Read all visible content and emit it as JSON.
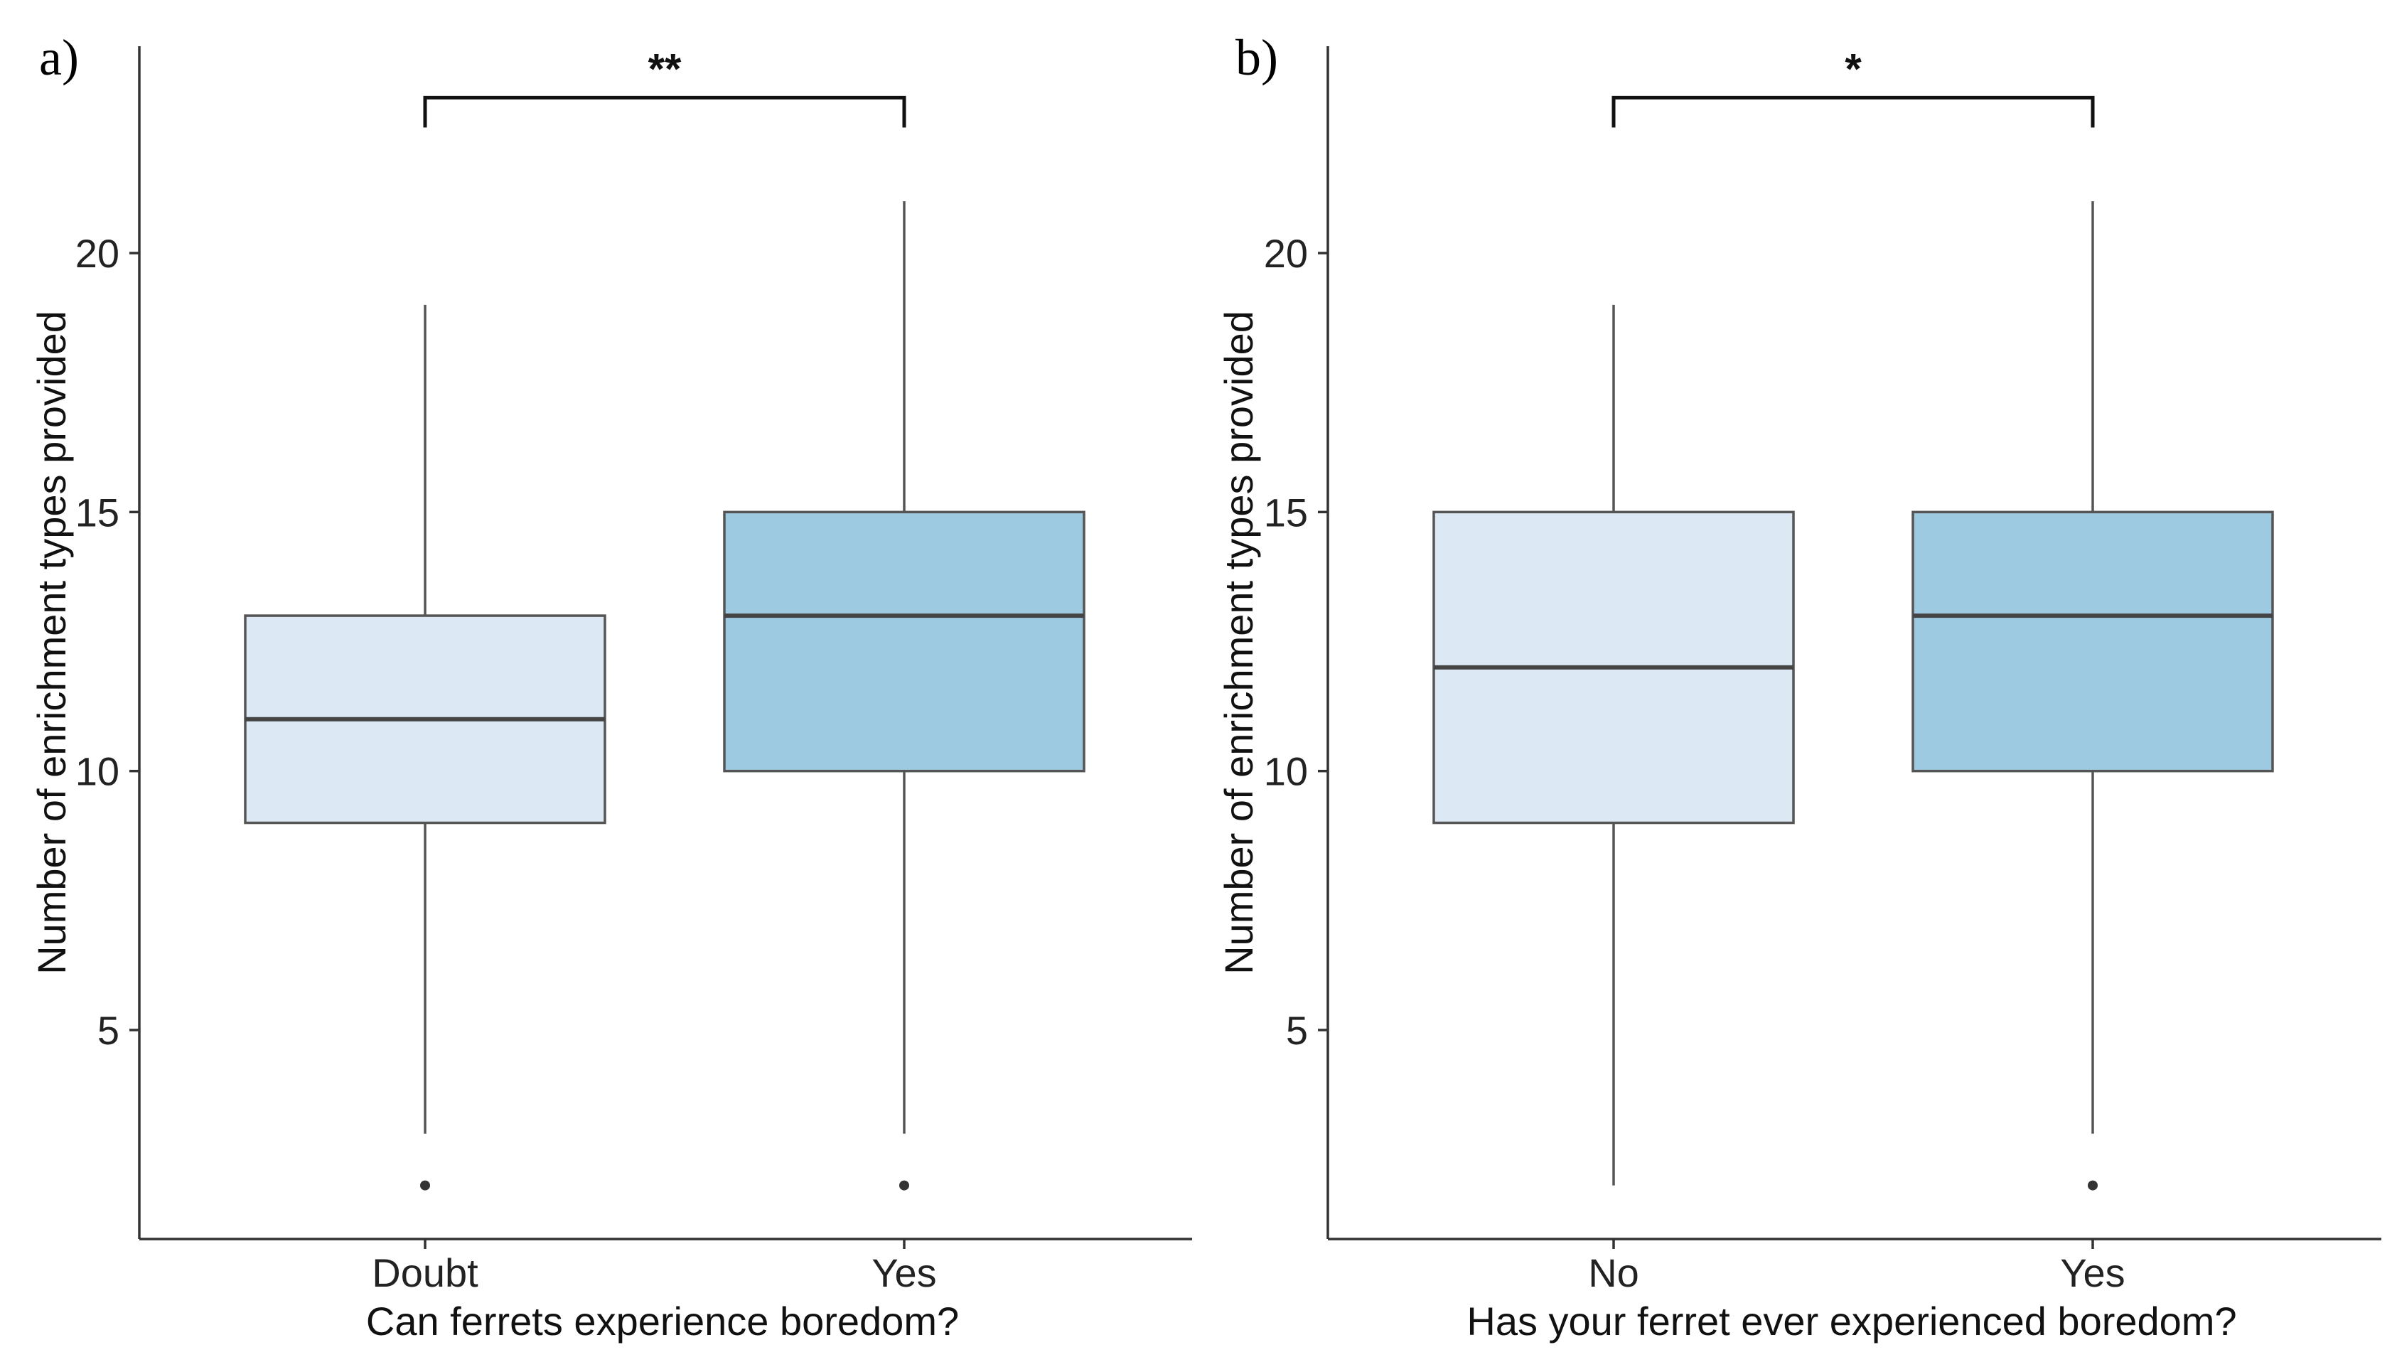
{
  "chart_data": [
    {
      "type": "box",
      "panel_label": "a)",
      "xlabel": "Can ferrets experience boredom?",
      "ylabel": "Number of enrichment types provided",
      "categories": [
        "Doubt",
        "Yes"
      ],
      "y_ticks": [
        5,
        10,
        15,
        20
      ],
      "y_tick_labels": [
        "5",
        "10",
        "15",
        "20"
      ],
      "ylim": [
        1,
        24
      ],
      "grid": false,
      "boxes": [
        {
          "category": "Doubt",
          "whisker_low": 3,
          "q1": 9,
          "median": 11,
          "q3": 13,
          "whisker_high": 19,
          "outliers": [
            2
          ],
          "color": "#dde8f5"
        },
        {
          "category": "Yes",
          "whisker_low": 3,
          "q1": 10,
          "median": 13,
          "q3": 15,
          "whisker_high": 21,
          "outliers": [
            2
          ],
          "color": "#9dcae1"
        }
      ],
      "significance": {
        "label": "**",
        "between": [
          "Doubt",
          "Yes"
        ],
        "y": 23
      }
    },
    {
      "type": "box",
      "panel_label": "b)",
      "xlabel": "Has your ferret ever experienced boredom?",
      "ylabel": "Number of enrichment types provided",
      "categories": [
        "No",
        "Yes"
      ],
      "y_ticks": [
        5,
        10,
        15,
        20
      ],
      "y_tick_labels": [
        "5",
        "10",
        "15",
        "20"
      ],
      "ylim": [
        1,
        24
      ],
      "grid": false,
      "boxes": [
        {
          "category": "No",
          "whisker_low": 2,
          "q1": 9,
          "median": 12,
          "q3": 15,
          "whisker_high": 19,
          "outliers": [],
          "color": "#dde8f5"
        },
        {
          "category": "Yes",
          "whisker_low": 3,
          "q1": 10,
          "median": 13,
          "q3": 15,
          "whisker_high": 21,
          "outliers": [
            2
          ],
          "color": "#9dcae1"
        }
      ],
      "significance": {
        "label": "*",
        "between": [
          "No",
          "Yes"
        ],
        "y": 23
      }
    }
  ]
}
